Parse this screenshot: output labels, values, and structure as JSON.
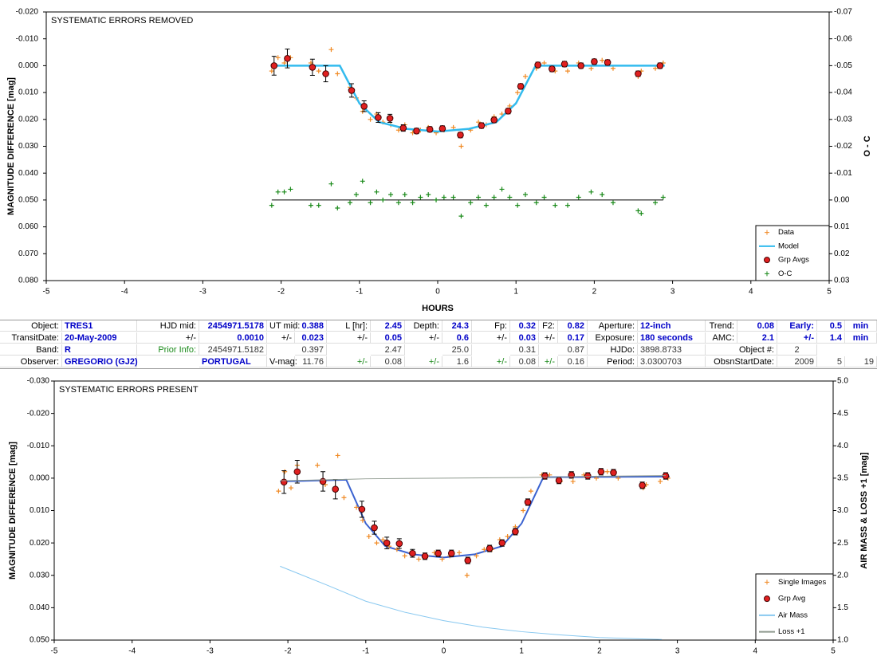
{
  "chart_data": [
    {
      "type": "scatter",
      "annotation": "SYSTEMATIC ERRORS REMOVED",
      "xlabel": "HOURS",
      "ylabel": "MAGNITUDE DIFFERENCE [mag]",
      "y2label": "O - C",
      "xlim": [
        -5,
        5
      ],
      "xticks": [
        -5,
        -4,
        -3,
        -2,
        -1,
        0,
        1,
        2,
        3,
        4,
        5
      ],
      "ylim": [
        0.08,
        -0.02
      ],
      "yticks": [
        {
          "value": -0.02,
          "label": "-0.020"
        },
        {
          "value": -0.01,
          "label": "-0.010"
        },
        {
          "value": 0,
          "label": "0.000"
        },
        {
          "value": 0.01,
          "label": "0.010"
        },
        {
          "value": 0.02,
          "label": "0.020"
        },
        {
          "value": 0.03,
          "label": "0.030"
        },
        {
          "value": 0.04,
          "label": "0.040"
        },
        {
          "value": 0.05,
          "label": "0.050"
        },
        {
          "value": 0.06,
          "label": "0.060"
        },
        {
          "value": 0.07,
          "label": "0.070"
        },
        {
          "value": 0.08,
          "label": "0.080"
        }
      ],
      "y2lim": [
        0.03,
        -0.07
      ],
      "y2ticks": [
        -0.07,
        -0.06,
        -0.05,
        -0.04,
        -0.03,
        -0.02,
        -0.01,
        {
          "value": 0,
          "label": "0.00"
        },
        0.01,
        0.02,
        0.03
      ],
      "grid": false,
      "legend": "lower right",
      "series": [
        {
          "name": "Data",
          "color": "#f08a24",
          "marker": "plus",
          "x": [
            -2.12,
            -2.04,
            -1.96,
            -1.88,
            -1.62,
            -1.52,
            -1.36,
            -1.28,
            -1.12,
            -1.04,
            -0.96,
            -0.86,
            -0.78,
            -0.7,
            -0.6,
            -0.5,
            -0.42,
            -0.32,
            -0.22,
            -0.12,
            -0.02,
            0.08,
            0.2,
            0.3,
            0.42,
            0.52,
            0.62,
            0.72,
            0.82,
            0.92,
            1.02,
            1.12,
            1.26,
            1.36,
            1.5,
            1.66,
            1.8,
            1.96,
            2.1,
            2.24,
            2.56,
            2.6,
            2.78,
            2.88
          ],
          "values": [
            0.002,
            -0.003,
            -0.001,
            -0.003,
            -0.001,
            0.002,
            -0.006,
            0.003,
            0.008,
            0.012,
            0.017,
            0.02,
            0.018,
            0.021,
            0.022,
            0.024,
            0.022,
            0.025,
            0.024,
            0.023,
            0.025,
            0.024,
            0.023,
            0.03,
            0.024,
            0.021,
            0.022,
            0.019,
            0.018,
            0.015,
            0.01,
            0.004,
            0.001,
            -0.001,
            0.002,
            0.002,
            -0.001,
            0.001,
            -0.002,
            0.001,
            0.004,
            0.002,
            0.001,
            -0.001
          ]
        },
        {
          "name": "Model",
          "color": "#33bbee",
          "marker": "line",
          "x": [
            -2.1,
            -1.25,
            -1.0,
            -0.75,
            -0.4,
            0,
            0.4,
            0.75,
            1.0,
            1.25,
            2.9
          ],
          "values": [
            0,
            0,
            0.014,
            0.021,
            0.0235,
            0.0245,
            0.0235,
            0.021,
            0.014,
            0,
            0
          ]
        },
        {
          "name": "Grp Avgs",
          "color": "#e02020",
          "marker": "circle",
          "x": [
            -2.09,
            -1.92,
            -1.6,
            -1.43,
            -1.1,
            -0.94,
            -0.76,
            -0.61,
            -0.44,
            -0.27,
            -0.1,
            0.06,
            0.29,
            0.56,
            0.72,
            0.9,
            1.06,
            1.28,
            1.46,
            1.62,
            1.83,
            2.0,
            2.17,
            2.56,
            2.84
          ],
          "values": [
            0,
            -0.0027,
            0.0006,
            0.003,
            0.0092,
            0.0151,
            0.0193,
            0.0196,
            0.0232,
            0.0243,
            0.0237,
            0.0234,
            0.0258,
            0.0223,
            0.0202,
            0.0169,
            0.0077,
            -0.0003,
            0.0012,
            -0.0006,
            0,
            -0.0015,
            -0.0012,
            0.003,
            0
          ],
          "errors": [
            0.0035,
            0.0035,
            0.003,
            0.003,
            0.0025,
            0.002,
            0.0018,
            0.0015,
            0.0012,
            0.001,
            0.001,
            0.001,
            0.001,
            0.001,
            0.001,
            0.001,
            0.001,
            0.001,
            0.001,
            0.001,
            0.001,
            0.001,
            0.001,
            0.001,
            0.001
          ]
        },
        {
          "name": "O-C",
          "color": "#1a8a1a",
          "marker": "plus",
          "axis": "y2",
          "baseline": 0,
          "x": [
            -2.12,
            -2.04,
            -1.96,
            -1.88,
            -1.62,
            -1.52,
            -1.36,
            -1.28,
            -1.12,
            -1.04,
            -0.96,
            -0.86,
            -0.78,
            -0.7,
            -0.6,
            -0.5,
            -0.42,
            -0.32,
            -0.22,
            -0.12,
            -0.02,
            0.08,
            0.2,
            0.3,
            0.42,
            0.52,
            0.62,
            0.72,
            0.82,
            0.92,
            1.02,
            1.12,
            1.26,
            1.36,
            1.5,
            1.66,
            1.8,
            1.96,
            2.1,
            2.24,
            2.56,
            2.6,
            2.78,
            2.88
          ],
          "values": [
            0.002,
            -0.003,
            -0.003,
            -0.004,
            0.002,
            0.002,
            -0.006,
            0.003,
            0.001,
            -0.002,
            -0.007,
            0.001,
            -0.003,
            0,
            -0.002,
            0.001,
            -0.002,
            0.001,
            -0.001,
            -0.002,
            0,
            -0.001,
            -0.001,
            0.006,
            0.001,
            -0.001,
            0.002,
            -0.001,
            -0.004,
            -0.001,
            0.002,
            -0.002,
            0.001,
            -0.001,
            0.002,
            0.002,
            -0.001,
            -0.003,
            -0.002,
            0.001,
            0.004,
            0.005,
            0.001,
            -0.001
          ]
        }
      ]
    },
    {
      "type": "scatter",
      "annotation": "SYSTEMATIC ERRORS PRESENT",
      "ylabel": "MAGNITUDE DIFFERENCE [mag]",
      "y2label": "AIR MASS & LOSS +1 [mag]",
      "xlim": [
        -5,
        5
      ],
      "xticks": [
        -5,
        -4,
        -3,
        -2,
        -1,
        0,
        1,
        2,
        3,
        4,
        5
      ],
      "ylim": [
        0.05,
        -0.03
      ],
      "yticks": [
        {
          "value": -0.03,
          "label": "-0.030"
        },
        {
          "value": -0.02,
          "label": "-0.020"
        },
        {
          "value": -0.01,
          "label": "-0.010"
        },
        {
          "value": 0,
          "label": "0.000"
        },
        {
          "value": 0.01,
          "label": "0.010"
        },
        {
          "value": 0.02,
          "label": "0.020"
        },
        {
          "value": 0.03,
          "label": "0.030"
        },
        {
          "value": 0.04,
          "label": "0.040"
        },
        {
          "value": 0.05,
          "label": "0.050"
        }
      ],
      "y2lim": [
        1,
        5
      ],
      "y2ticks": [
        {
          "value": 1,
          "label": "1.0"
        },
        1.5,
        {
          "value": 2,
          "label": "2.0"
        },
        2.5,
        {
          "value": 3,
          "label": "3.0"
        },
        3.5,
        {
          "value": 4,
          "label": "4.0"
        },
        4.5,
        {
          "value": 5,
          "label": "5.0"
        }
      ],
      "grid": false,
      "legend": "lower right",
      "model": {
        "color": "#3a62d0",
        "x": [
          -2.1,
          -1.25,
          -1.0,
          -0.75,
          -0.4,
          0,
          0.4,
          0.75,
          1.0,
          1.28,
          2.9
        ],
        "values": [
          0.001,
          0.0005,
          0.014,
          0.021,
          0.0235,
          0.0245,
          0.0235,
          0.021,
          0.014,
          -0.0003,
          -0.0005
        ]
      },
      "series": [
        {
          "name": "Single Images",
          "color": "#f08a24",
          "marker": "plus",
          "x": [
            -2.12,
            -2.04,
            -1.96,
            -1.88,
            -1.62,
            -1.52,
            -1.36,
            -1.28,
            -1.12,
            -1.04,
            -0.96,
            -0.86,
            -0.78,
            -0.7,
            -0.6,
            -0.5,
            -0.42,
            -0.32,
            -0.22,
            -0.12,
            -0.02,
            0.08,
            0.2,
            0.3,
            0.42,
            0.52,
            0.62,
            0.72,
            0.82,
            0.92,
            1.02,
            1.12,
            1.26,
            1.36,
            1.5,
            1.66,
            1.8,
            1.96,
            2.1,
            2.24,
            2.56,
            2.6,
            2.78,
            2.88
          ],
          "values": [
            0.004,
            -0.002,
            0.003,
            -0.004,
            -0.004,
            0.002,
            -0.007,
            0.006,
            0.009,
            0.013,
            0.018,
            0.02,
            0.019,
            0.021,
            0.022,
            0.024,
            0.023,
            0.025,
            0.024,
            0.023,
            0.025,
            0.024,
            0.023,
            0.03,
            0.024,
            0.022,
            0.022,
            0.019,
            0.018,
            0.015,
            0.01,
            0.004,
            -0.001,
            -0.001,
            0.001,
            0.001,
            -0.001,
            0,
            -0.002,
            0,
            0.003,
            0.002,
            0.001,
            0
          ]
        },
        {
          "name": "Grp Avg",
          "color": "#e02020",
          "marker": "circle",
          "x": [
            -2.05,
            -1.88,
            -1.55,
            -1.39,
            -1.05,
            -0.89,
            -0.73,
            -0.57,
            -0.4,
            -0.24,
            -0.07,
            0.1,
            0.31,
            0.59,
            0.75,
            0.92,
            1.08,
            1.3,
            1.48,
            1.64,
            1.85,
            2.02,
            2.18,
            2.55,
            2.85
          ],
          "values": [
            0.0012,
            -0.002,
            0.001,
            0.0034,
            0.0096,
            0.0153,
            0.02,
            0.0202,
            0.0232,
            0.0241,
            0.0232,
            0.0232,
            0.0254,
            0.0217,
            0.02,
            0.0165,
            0.0074,
            -0.0007,
            0.0007,
            -0.001,
            -0.0007,
            -0.002,
            -0.0017,
            0.0022,
            -0.0007
          ],
          "errors": [
            0.0035,
            0.0035,
            0.003,
            0.003,
            0.0025,
            0.002,
            0.0018,
            0.0015,
            0.0012,
            0.001,
            0.001,
            0.001,
            0.001,
            0.001,
            0.001,
            0.001,
            0.001,
            0.001,
            0.001,
            0.001,
            0.001,
            0.001,
            0.001,
            0.001,
            0.001
          ]
        },
        {
          "name": "Air Mass",
          "color": "#88c8f0",
          "marker": "line",
          "axis": "y2",
          "x": [
            -2.1,
            -1.5,
            -1.0,
            -0.5,
            0,
            0.5,
            1.0,
            1.5,
            2.0,
            2.5,
            2.8
          ],
          "values": [
            2.14,
            1.85,
            1.6,
            1.43,
            1.3,
            1.2,
            1.13,
            1.08,
            1.04,
            1.02,
            1.01
          ]
        },
        {
          "name": "Loss +1",
          "color": "#8f9a8f",
          "marker": "line",
          "axis": "y2",
          "x": [
            -2.1,
            -1.3,
            -1.0,
            0,
            1,
            2,
            2.85
          ],
          "values": [
            3.46,
            3.48,
            3.49,
            3.5,
            3.51,
            3.53,
            3.54
          ]
        }
      ]
    }
  ],
  "table": {
    "rows": [
      [
        "Object:",
        "TRES1",
        "HJD mid:",
        "2454971.5178",
        "UT mid:",
        "0.388",
        "L [hr]:",
        "2.45",
        "Depth:",
        "24.3",
        "Fp:",
        "0.32",
        "F2:",
        "0.82",
        "Aperture:",
        "12-inch",
        "Trend:",
        "0.08",
        "Early:",
        "0.5",
        "min"
      ],
      [
        "TransitDate:",
        "20-May-2009",
        "+/-",
        "0.0010",
        "+/-",
        "0.023",
        "+/-",
        "0.05",
        "+/-",
        "0.6",
        "+/-",
        "0.03",
        "+/-",
        "0.17",
        "Exposure:",
        "180 seconds",
        "AMC:",
        "2.1",
        "+/-",
        "1.4",
        "min"
      ],
      [
        "Band:",
        "R",
        "Prior Info:",
        "2454971.5182",
        "0.397",
        "2.47",
        "25.0",
        "0.31",
        "0.87",
        "HJDo:",
        "3898.8733",
        "Object #:",
        "2"
      ],
      [
        "Observer:",
        "GREGORIO (GJ2)",
        "PORTUGAL",
        "V-mag:",
        "11.76",
        "+/-",
        "0.08",
        "+/-",
        "1.6",
        "+/-",
        "0.08",
        "+/-",
        "0.16",
        "Period:",
        "3.0300703",
        "ObsnStartDate:",
        "2009",
        "5",
        "19"
      ]
    ]
  }
}
